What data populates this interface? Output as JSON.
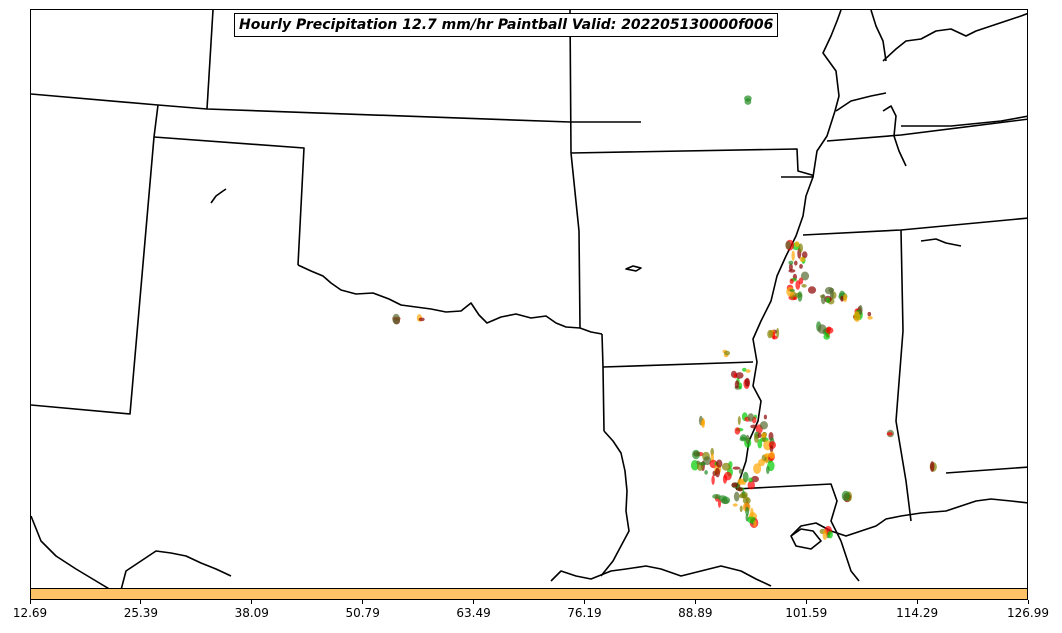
{
  "title": "Hourly Precipitation 12.7 mm/hr Paintball Valid: 202205130000f006",
  "colorbar": {
    "color": "#ffc266",
    "tick_labels": [
      "12.69",
      "25.39",
      "38.09",
      "50.79",
      "63.49",
      "76.19",
      "88.89",
      "101.59",
      "114.29",
      "126.99"
    ]
  },
  "paintball_colors": [
    "#ff0000",
    "#ffa500",
    "#00cc00",
    "#8b0000",
    "#556b2f",
    "#228b22",
    "#808000"
  ]
}
